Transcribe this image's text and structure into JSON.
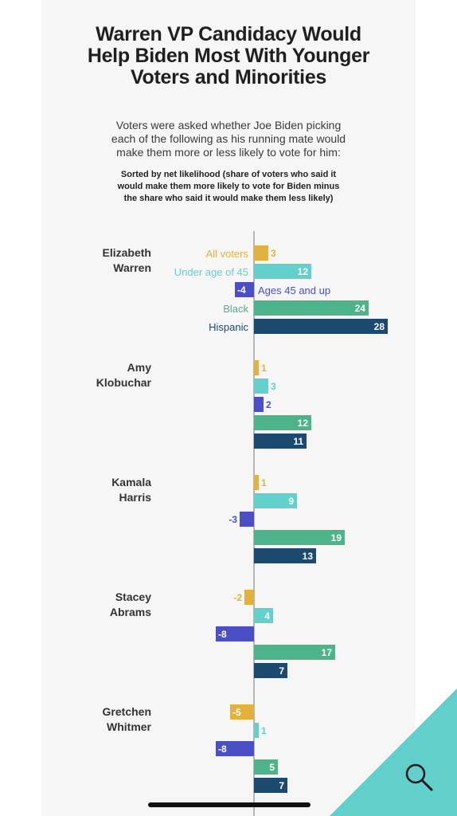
{
  "title_lines": [
    "Warren VP Candidacy Would",
    "Help Biden Most With Younger",
    "Voters and Minorities"
  ],
  "subtitle_lines": [
    "Voters were asked whether Joe Biden picking",
    "each of the following as his running mate would",
    "make them more or less likely to vote for him:"
  ],
  "note_lines": [
    "Sorted by net likelihood (share of voters who said it",
    "would make them more likely to vote for Biden minus",
    "the share who said it would make them less likely)"
  ],
  "icons": {
    "search": "search-icon"
  },
  "colors": {
    "All voters": "#e3b23c",
    "Under age of 45": "#62d0cd",
    "Ages 45 and up": "#4b4fc5",
    "Black": "#4db38a",
    "Hispanic": "#1c4a6e",
    "corner": "#62cfcc"
  },
  "chart_data": {
    "type": "bar",
    "orientation": "horizontal",
    "groups": [
      "All voters",
      "Under age of 45",
      "Ages 45 and up",
      "Black",
      "Hispanic"
    ],
    "candidates": [
      {
        "name_lines": [
          "Elizabeth",
          "Warren"
        ],
        "values": [
          3,
          12,
          -4,
          24,
          28
        ]
      },
      {
        "name_lines": [
          "Amy",
          "Klobuchar"
        ],
        "values": [
          1,
          3,
          2,
          12,
          11
        ]
      },
      {
        "name_lines": [
          "Kamala",
          "Harris"
        ],
        "values": [
          1,
          9,
          -3,
          19,
          13
        ]
      },
      {
        "name_lines": [
          "Stacey",
          "Abrams"
        ],
        "values": [
          -2,
          4,
          -8,
          17,
          7
        ]
      },
      {
        "name_lines": [
          "Gretchen",
          "Whitmer"
        ],
        "values": [
          -5,
          1,
          -8,
          5,
          7
        ]
      }
    ]
  }
}
